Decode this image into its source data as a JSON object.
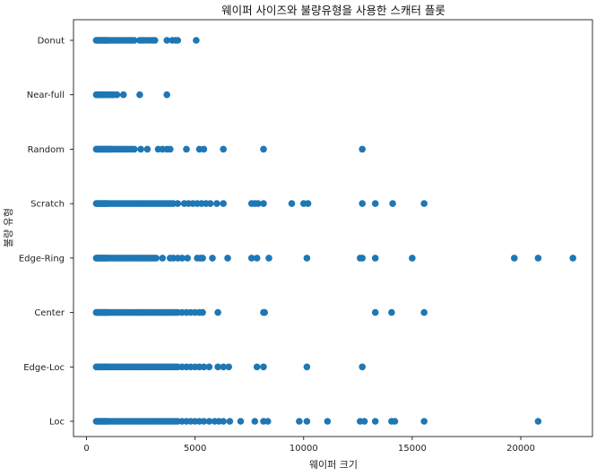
{
  "chart_data": {
    "type": "scatter",
    "title": "웨이퍼 사이즈와 불량유형을 사용한 스캐터 플롯",
    "xlabel": "웨이퍼 크기",
    "ylabel": "불량 유형",
    "xlim": [
      -600,
      23300
    ],
    "xticks": [
      0,
      5000,
      10000,
      15000,
      20000
    ],
    "categories": [
      "Loc",
      "Edge-Loc",
      "Center",
      "Edge-Ring",
      "Scratch",
      "Random",
      "Near-full",
      "Donut"
    ],
    "color": "#1f77b4",
    "grid": false,
    "points": {
      "Donut": [
        450,
        500,
        550,
        600,
        650,
        700,
        750,
        800,
        850,
        900,
        950,
        1000,
        1100,
        1200,
        1300,
        1400,
        1500,
        1600,
        1700,
        1800,
        1900,
        2000,
        2100,
        2200,
        2450,
        2550,
        2650,
        2800,
        2950,
        3050,
        3150,
        3700,
        3950,
        4100,
        4200,
        5050
      ],
      "Near-full": [
        450,
        500,
        550,
        600,
        650,
        700,
        750,
        850,
        950,
        1050,
        1150,
        1250,
        1400,
        1700,
        2450,
        3700
      ],
      "Random": [
        450,
        500,
        550,
        600,
        650,
        700,
        750,
        800,
        850,
        900,
        950,
        1000,
        1050,
        1100,
        1150,
        1200,
        1300,
        1400,
        1500,
        1600,
        1700,
        1800,
        1900,
        2000,
        2100,
        2200,
        2500,
        2800,
        3300,
        3500,
        3700,
        3850,
        4600,
        5200,
        5400,
        6300,
        8150,
        12700
      ],
      "Scratch": [
        450,
        500,
        550,
        600,
        650,
        700,
        750,
        800,
        850,
        900,
        950,
        1000,
        1100,
        1200,
        1300,
        1400,
        1500,
        1600,
        1700,
        1800,
        1900,
        2000,
        2100,
        2200,
        2300,
        2400,
        2500,
        2600,
        2700,
        2800,
        2900,
        3000,
        3100,
        3200,
        3300,
        3400,
        3500,
        3600,
        3700,
        3800,
        3900,
        4000,
        4200,
        4500,
        4700,
        4900,
        5100,
        5300,
        5500,
        5700,
        6000,
        6300,
        7600,
        7750,
        7900,
        8150,
        9450,
        10000,
        10200,
        12700,
        13300,
        14100,
        15550
      ],
      "Edge-Ring": [
        450,
        500,
        550,
        600,
        650,
        700,
        750,
        800,
        850,
        900,
        950,
        1000,
        1100,
        1200,
        1300,
        1400,
        1500,
        1600,
        1700,
        1800,
        1900,
        2000,
        2100,
        2200,
        2300,
        2400,
        2500,
        2600,
        2700,
        2800,
        2900,
        3000,
        3100,
        3200,
        3500,
        3850,
        4000,
        4200,
        4400,
        4650,
        5100,
        5250,
        5350,
        5800,
        6500,
        7600,
        7850,
        8400,
        10150,
        12600,
        12700,
        13300,
        15000,
        19700,
        20800,
        22400
      ],
      "Center": [
        450,
        500,
        550,
        600,
        650,
        700,
        750,
        800,
        850,
        900,
        950,
        1000,
        1100,
        1200,
        1300,
        1400,
        1500,
        1600,
        1700,
        1800,
        1900,
        2000,
        2100,
        2200,
        2300,
        2400,
        2500,
        2600,
        2700,
        2800,
        2900,
        3000,
        3100,
        3200,
        3300,
        3400,
        3500,
        3600,
        3700,
        3800,
        3900,
        4000,
        4100,
        4200,
        4400,
        4600,
        4800,
        5000,
        5200,
        5350,
        6050,
        8150,
        8200,
        13300,
        14050,
        15550
      ],
      "Edge-Loc": [
        450,
        500,
        550,
        600,
        650,
        700,
        750,
        800,
        850,
        900,
        950,
        1000,
        1100,
        1200,
        1300,
        1400,
        1500,
        1600,
        1700,
        1800,
        1900,
        2000,
        2100,
        2200,
        2300,
        2400,
        2500,
        2600,
        2700,
        2800,
        2900,
        3000,
        3100,
        3200,
        3300,
        3400,
        3500,
        3600,
        3700,
        3800,
        3900,
        4000,
        4100,
        4200,
        4400,
        4600,
        4800,
        5000,
        5200,
        5400,
        5650,
        6050,
        6300,
        6550,
        7850,
        8150,
        10150,
        12700
      ],
      "Loc": [
        450,
        500,
        550,
        600,
        650,
        700,
        750,
        800,
        850,
        900,
        950,
        1000,
        1100,
        1200,
        1300,
        1400,
        1500,
        1600,
        1700,
        1800,
        1900,
        2000,
        2100,
        2200,
        2300,
        2400,
        2500,
        2600,
        2700,
        2800,
        2900,
        3000,
        3100,
        3200,
        3300,
        3400,
        3500,
        3600,
        3700,
        3800,
        3900,
        4000,
        4100,
        4200,
        4400,
        4600,
        4800,
        5000,
        5200,
        5400,
        5650,
        5900,
        6100,
        6300,
        6600,
        7100,
        7750,
        8150,
        8350,
        9800,
        10150,
        11100,
        12600,
        12800,
        13300,
        14050,
        14200,
        15550,
        20800
      ]
    }
  }
}
